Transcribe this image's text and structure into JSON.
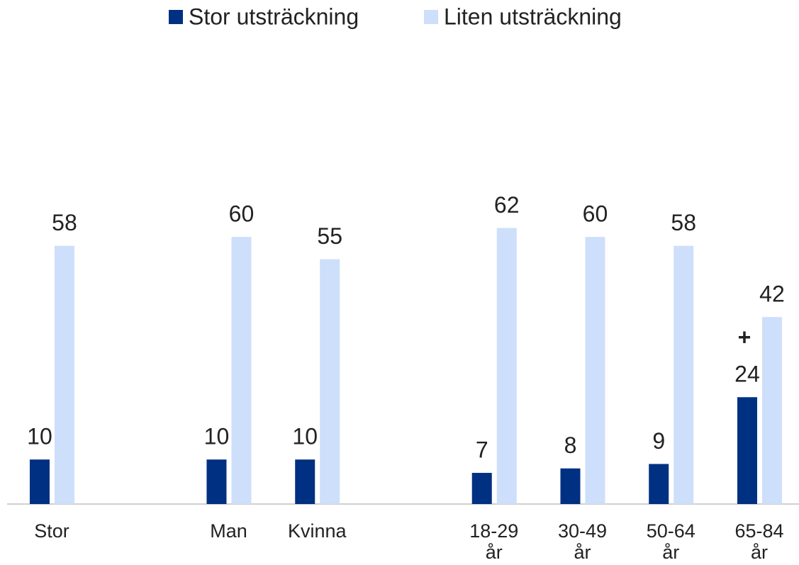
{
  "chart_data": {
    "type": "bar",
    "categories": [
      "Stor",
      null,
      "Man",
      "Kvinna",
      null,
      "18-29 år",
      "30-49 år",
      "50-64 år",
      "65-84 år"
    ],
    "series": [
      {
        "name": "Stor utsträckning",
        "color": "#003082",
        "values": [
          10,
          null,
          10,
          10,
          null,
          7,
          8,
          9,
          24
        ]
      },
      {
        "name": "Liten utsträckning",
        "color": "#cddffa",
        "values": [
          58,
          null,
          60,
          55,
          null,
          62,
          60,
          58,
          42
        ]
      }
    ],
    "annotations": [
      {
        "text": "+"
      }
    ],
    "ylim": [
      0,
      100
    ],
    "legend": "top"
  }
}
